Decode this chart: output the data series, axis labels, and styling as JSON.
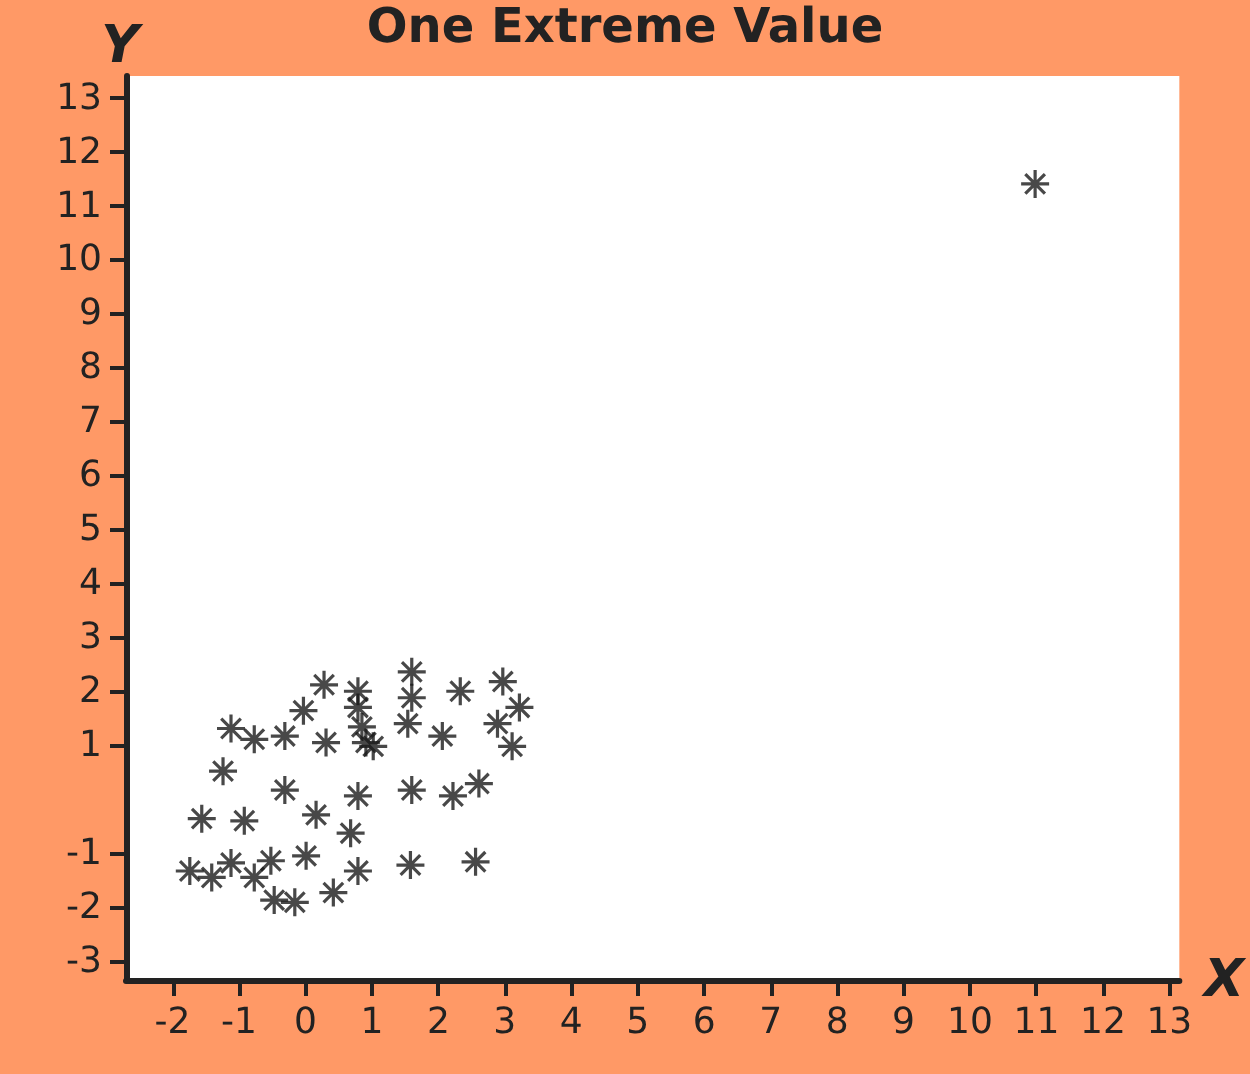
{
  "chart_data": {
    "type": "scatter",
    "title": "One Extreme Value",
    "xlabel": "X",
    "ylabel": "Y",
    "x": [
      -1.74,
      -1.41,
      -1.56,
      -1.12,
      -1.24,
      -1.12,
      -0.77,
      -0.92,
      -0.77,
      -0.52,
      -0.47,
      -0.16,
      -0.31,
      -0.31,
      -0.03,
      0.16,
      0.01,
      0.31,
      0.28,
      0.68,
      0.79,
      0.42,
      0.79,
      0.79,
      0.85,
      0.91,
      1.02,
      0.79,
      1.6,
      1.6,
      1.54,
      1.6,
      1.58,
      2.33,
      2.06,
      2.22,
      2.61,
      2.56,
      2.97,
      2.89,
      3.22,
      3.11,
      10.98
    ],
    "values": [
      -1.33,
      -1.45,
      -0.36,
      -1.18,
      0.52,
      1.31,
      1.11,
      -0.4,
      -1.45,
      -1.14,
      -1.87,
      -1.91,
      1.17,
      0.17,
      1.64,
      -0.29,
      -1.05,
      1.05,
      2.12,
      -0.63,
      -1.33,
      -1.73,
      2.0,
      1.7,
      1.34,
      1.05,
      0.98,
      0.06,
      2.36,
      1.88,
      1.4,
      0.17,
      -1.22,
      2.0,
      1.17,
      0.06,
      0.29,
      -1.16,
      2.18,
      1.4,
      1.7,
      0.98,
      11.4
    ],
    "color": "#1a1a1a",
    "marker": "cross",
    "xlim": [
      -2.7,
      13.15
    ],
    "xticks": [
      -2,
      -1,
      0,
      1,
      2,
      3,
      4,
      5,
      6,
      7,
      8,
      9,
      10,
      11,
      12,
      13
    ],
    "ylim": [
      -3.35,
      13.4
    ],
    "yticks": [
      -3,
      -2,
      -1,
      1,
      2,
      3,
      4,
      5,
      6,
      7,
      8,
      9,
      10,
      11,
      12,
      13
    ],
    "grid": false
  }
}
